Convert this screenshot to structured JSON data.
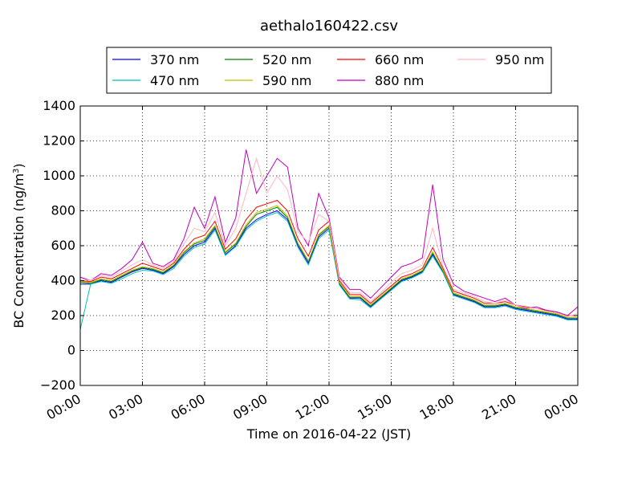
{
  "chart_data": {
    "type": "line",
    "title": "aethalo160422.csv",
    "xlabel": "Time on 2016-04-22 (JST)",
    "ylabel": "BC Concentration (ng/m³)",
    "ylabel_main": "BC Concentration (ng/m",
    "ylabel_sup": "3",
    "ylabel_end": ")",
    "x_unit": "hours",
    "xlim": [
      0,
      24
    ],
    "ylim": [
      -200,
      1400
    ],
    "x_ticks": [
      0,
      3,
      6,
      9,
      12,
      15,
      18,
      21,
      24
    ],
    "x_tick_labels": [
      "00:00",
      "03:00",
      "06:00",
      "09:00",
      "12:00",
      "15:00",
      "18:00",
      "21:00",
      "00:00"
    ],
    "y_ticks": [
      -200,
      0,
      200,
      400,
      600,
      800,
      1000,
      1200,
      1400
    ],
    "y_tick_labels": [
      "−200",
      "0",
      "200",
      "400",
      "600",
      "800",
      "1000",
      "1200",
      "1400"
    ],
    "grid": true,
    "legend_position": "top",
    "x": [
      0.0,
      0.5,
      1.0,
      1.5,
      2.0,
      2.5,
      3.0,
      3.5,
      4.0,
      4.5,
      5.0,
      5.5,
      6.0,
      6.5,
      7.0,
      7.5,
      8.0,
      8.5,
      9.0,
      9.5,
      10.0,
      10.5,
      11.0,
      11.5,
      12.0,
      12.5,
      13.0,
      13.5,
      14.0,
      14.5,
      15.0,
      15.5,
      16.0,
      16.5,
      17.0,
      17.5,
      18.0,
      18.5,
      19.0,
      19.5,
      20.0,
      20.5,
      21.0,
      21.5,
      22.0,
      22.5,
      23.0,
      23.5,
      24.0
    ],
    "series": [
      {
        "name": "370 nm",
        "color": "#0000ff",
        "values": [
          380,
          380,
          400,
          390,
          420,
          450,
          470,
          460,
          440,
          480,
          550,
          600,
          620,
          700,
          550,
          600,
          700,
          750,
          780,
          800,
          750,
          600,
          500,
          650,
          700,
          380,
          300,
          300,
          250,
          300,
          350,
          400,
          420,
          450,
          550,
          450,
          320,
          300,
          280,
          250,
          250,
          260,
          240,
          230,
          220,
          210,
          200,
          180,
          180
        ]
      },
      {
        "name": "470 nm",
        "color": "#00bfbf",
        "values": [
          120,
          380,
          395,
          385,
          410,
          440,
          460,
          455,
          435,
          470,
          540,
          590,
          610,
          690,
          545,
          595,
          690,
          740,
          770,
          790,
          740,
          590,
          490,
          640,
          690,
          375,
          295,
          290,
          245,
          295,
          345,
          395,
          415,
          445,
          540,
          445,
          315,
          295,
          275,
          245,
          245,
          255,
          235,
          225,
          215,
          205,
          195,
          175,
          175
        ]
      },
      {
        "name": "520 nm",
        "color": "#008000",
        "values": [
          390,
          385,
          405,
          395,
          425,
          455,
          475,
          465,
          445,
          485,
          560,
          610,
          630,
          710,
          560,
          610,
          710,
          780,
          800,
          820,
          760,
          610,
          510,
          660,
          710,
          385,
          305,
          305,
          255,
          305,
          355,
          405,
          425,
          455,
          560,
          455,
          325,
          305,
          285,
          255,
          255,
          265,
          245,
          235,
          225,
          215,
          205,
          185,
          185
        ]
      },
      {
        "name": "590 nm",
        "color": "#bfbf00",
        "values": [
          395,
          390,
          410,
          400,
          430,
          460,
          480,
          470,
          450,
          490,
          565,
          615,
          640,
          715,
          565,
          615,
          720,
          790,
          810,
          830,
          770,
          615,
          515,
          665,
          715,
          390,
          310,
          310,
          260,
          310,
          360,
          410,
          430,
          460,
          565,
          460,
          330,
          310,
          290,
          260,
          260,
          270,
          250,
          240,
          230,
          220,
          210,
          190,
          190
        ]
      },
      {
        "name": "660 nm",
        "color": "#ff0000",
        "values": [
          400,
          395,
          420,
          410,
          440,
          470,
          500,
          480,
          460,
          500,
          580,
          640,
          660,
          740,
          580,
          640,
          750,
          820,
          840,
          860,
          800,
          640,
          540,
          690,
          740,
          400,
          320,
          320,
          270,
          320,
          370,
          420,
          440,
          470,
          590,
          470,
          340,
          320,
          300,
          270,
          270,
          280,
          260,
          250,
          240,
          230,
          220,
          200,
          200
        ]
      },
      {
        "name": "880 nm",
        "color": "#bf00bf",
        "values": [
          420,
          400,
          440,
          430,
          470,
          520,
          620,
          500,
          480,
          520,
          640,
          820,
          700,
          880,
          620,
          760,
          1150,
          900,
          1000,
          1100,
          1050,
          700,
          600,
          900,
          760,
          420,
          350,
          350,
          300,
          360,
          420,
          480,
          500,
          530,
          950,
          520,
          380,
          340,
          320,
          300,
          280,
          300,
          260,
          240,
          250,
          230,
          220,
          200,
          250
        ]
      },
      {
        "name": "950 nm",
        "color": "#ffb6c1",
        "values": [
          410,
          400,
          430,
          420,
          455,
          490,
          520,
          490,
          470,
          510,
          610,
          700,
          680,
          790,
          600,
          700,
          900,
          1100,
          900,
          1000,
          920,
          680,
          620,
          780,
          740,
          410,
          330,
          330,
          280,
          330,
          390,
          440,
          460,
          490,
          700,
          480,
          350,
          330,
          310,
          280,
          270,
          290,
          260,
          245,
          240,
          225,
          215,
          195,
          210
        ]
      }
    ]
  }
}
